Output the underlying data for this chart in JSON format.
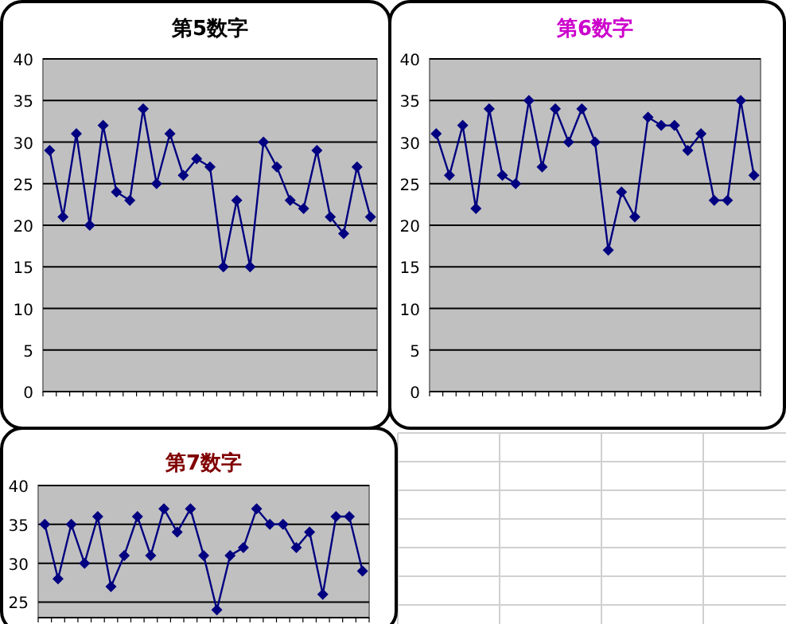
{
  "chart_data": [
    {
      "type": "line",
      "title": "第5数字",
      "categories": [
        null,
        null,
        null,
        null,
        null,
        null,
        null,
        null,
        null,
        null,
        null,
        null,
        null,
        null,
        null,
        null,
        null,
        null,
        null,
        null,
        null,
        null,
        null,
        null,
        null
      ],
      "series": [
        {
          "color": "#000080",
          "values": [
            29,
            21,
            31,
            20,
            32,
            24,
            23,
            34,
            25,
            31,
            26,
            28,
            27,
            15,
            23,
            15,
            30,
            27,
            23,
            22,
            29,
            21,
            19,
            27,
            21
          ]
        }
      ],
      "ylim": [
        0,
        40
      ],
      "yticks": [
        0,
        5,
        10,
        15,
        20,
        25,
        30,
        35,
        40
      ],
      "grid": "y",
      "marker": "diamond"
    },
    {
      "type": "line",
      "title": "第6数字",
      "categories": [
        null,
        null,
        null,
        null,
        null,
        null,
        null,
        null,
        null,
        null,
        null,
        null,
        null,
        null,
        null,
        null,
        null,
        null,
        null,
        null,
        null,
        null,
        null,
        null,
        null
      ],
      "series": [
        {
          "color": "#000080",
          "values": [
            31,
            26,
            32,
            22,
            34,
            26,
            25,
            35,
            27,
            34,
            30,
            34,
            30,
            17,
            24,
            21,
            33,
            32,
            32,
            29,
            31,
            23,
            23,
            35,
            26
          ]
        }
      ],
      "ylim": [
        0,
        40
      ],
      "yticks": [
        0,
        5,
        10,
        15,
        20,
        25,
        30,
        35,
        40
      ],
      "grid": "y",
      "marker": "diamond"
    },
    {
      "type": "line",
      "title": "第7数字",
      "categories": [
        null,
        null,
        null,
        null,
        null,
        null,
        null,
        null,
        null,
        null,
        null,
        null,
        null,
        null,
        null,
        null,
        null,
        null,
        null,
        null,
        null,
        null,
        null,
        null,
        null
      ],
      "series": [
        {
          "color": "#000080",
          "values": [
            35,
            28,
            35,
            30,
            36,
            27,
            31,
            36,
            31,
            37,
            34,
            37,
            31,
            24,
            31,
            32,
            37,
            35,
            35,
            32,
            34,
            26,
            36,
            36,
            29
          ]
        }
      ],
      "ylim": [
        23,
        40
      ],
      "yticks": [
        25,
        30,
        35,
        40
      ],
      "grid": "y",
      "marker": "diamond"
    }
  ]
}
